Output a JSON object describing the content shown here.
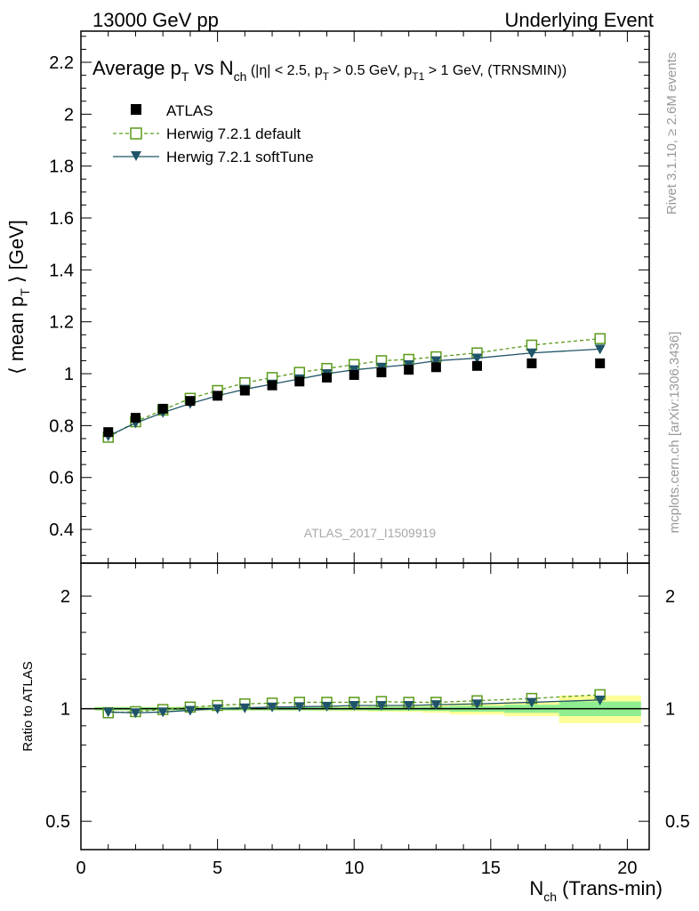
{
  "header": {
    "energy_label": "13000 GeV pp",
    "process_label": "Underlying Event"
  },
  "side_labels": {
    "rivet": "Rivet 3.1.10, ≥ 2.6M events",
    "mcplots": "mcplots.cern.ch [arXiv:1306.3436]"
  },
  "watermark": "ATLAS_2017_I1509919",
  "colors": {
    "atlas": "#000000",
    "default": "#5a9a1a",
    "softtune": "#1f5468",
    "band_inner": "#90ee90",
    "band_outer": "#ffff99"
  },
  "chart_data": [
    {
      "type": "line",
      "panel": "main",
      "title_parts": {
        "a": "Average p",
        "a_sub": "T",
        "b": " vs N",
        "b_sub": "ch",
        "c": " (|η| < 2.5, p",
        "c_sub": "T",
        "d": " > 0.5 GeV, p",
        "d_sub": "T1",
        "e": " > 1 GeV, (TRNSMIN))"
      },
      "ylabel_parts": {
        "a": "⟨ mean p",
        "a_sub": "T",
        "b": " ⟩ [GeV]"
      },
      "xlim": [
        0,
        20.8
      ],
      "ylim": [
        0.27,
        2.32
      ],
      "yticks": [
        0.4,
        0.6,
        0.8,
        1,
        1.2,
        1.4,
        1.6,
        1.8,
        2,
        2.2
      ],
      "ytick_labels": [
        "0.4",
        "0.6",
        "0.8",
        "1",
        "1.2",
        "1.4",
        "1.6",
        "1.8",
        "2",
        "2.2"
      ],
      "legend_position": "top-left",
      "series": [
        {
          "name": "ATLAS",
          "style": "data",
          "x": [
            1,
            2,
            3,
            4,
            5,
            6,
            7,
            8,
            9,
            10,
            11,
            12,
            13,
            14.5,
            16.5,
            19
          ],
          "values": [
            0.775,
            0.83,
            0.865,
            0.895,
            0.915,
            0.935,
            0.955,
            0.97,
            0.985,
            0.995,
            1.005,
            1.015,
            1.025,
            1.03,
            1.04,
            1.04
          ]
        },
        {
          "name": "Herwig 7.2.1 default",
          "style": "default",
          "x": [
            1,
            2,
            3,
            4,
            5,
            6,
            7,
            8,
            9,
            10,
            11,
            12,
            13,
            14.5,
            16.5,
            19
          ],
          "values": [
            0.755,
            0.815,
            0.86,
            0.905,
            0.935,
            0.965,
            0.985,
            1.005,
            1.02,
            1.035,
            1.05,
            1.055,
            1.065,
            1.08,
            1.11,
            1.135
          ]
        },
        {
          "name": "Herwig 7.2.1 softTune",
          "style": "softtune",
          "x": [
            1,
            2,
            3,
            4,
            5,
            6,
            7,
            8,
            9,
            10,
            11,
            12,
            13,
            14.5,
            16.5,
            19
          ],
          "values": [
            0.76,
            0.81,
            0.85,
            0.885,
            0.915,
            0.94,
            0.96,
            0.98,
            1.0,
            1.015,
            1.025,
            1.035,
            1.05,
            1.06,
            1.08,
            1.095
          ]
        }
      ]
    },
    {
      "type": "line",
      "panel": "ratio",
      "ylabel": "Ratio to ATLAS",
      "xlabel_parts": {
        "a": "N",
        "a_sub": "ch",
        "b": " (Trans-min)"
      },
      "xlim": [
        0,
        20.8
      ],
      "ylim": [
        0.42,
        2.45
      ],
      "log_scale_y": true,
      "xticks": [
        0,
        5,
        10,
        15,
        20
      ],
      "xtick_labels": [
        "0",
        "5",
        "10",
        "15",
        "20"
      ],
      "yticks": [
        0.5,
        1,
        2
      ],
      "ytick_labels": [
        "0.5",
        "1",
        "2"
      ],
      "uncertainty_bands": {
        "x_edges": [
          0.5,
          1.5,
          2.5,
          3.5,
          4.5,
          5.5,
          6.5,
          7.5,
          8.5,
          9.5,
          10.5,
          11.5,
          12.5,
          13.5,
          15.5,
          17.5,
          20.5
        ],
        "inner": [
          0.01,
          0.01,
          0.01,
          0.01,
          0.01,
          0.01,
          0.01,
          0.01,
          0.01,
          0.01,
          0.012,
          0.012,
          0.014,
          0.018,
          0.025,
          0.045
        ],
        "outer": [
          0.012,
          0.012,
          0.012,
          0.012,
          0.012,
          0.012,
          0.012,
          0.012,
          0.014,
          0.015,
          0.018,
          0.02,
          0.025,
          0.035,
          0.045,
          0.085
        ]
      },
      "series": [
        {
          "name": "Herwig 7.2.1 default",
          "style": "default",
          "x": [
            1,
            2,
            3,
            4,
            5,
            6,
            7,
            8,
            9,
            10,
            11,
            12,
            13,
            14.5,
            16.5,
            19
          ],
          "values": [
            0.975,
            0.982,
            0.995,
            1.01,
            1.02,
            1.03,
            1.035,
            1.04,
            1.04,
            1.04,
            1.045,
            1.04,
            1.04,
            1.05,
            1.065,
            1.09
          ]
        },
        {
          "name": "Herwig 7.2.1 softTune",
          "style": "softtune",
          "x": [
            1,
            2,
            3,
            4,
            5,
            6,
            7,
            8,
            9,
            10,
            11,
            12,
            13,
            14.5,
            16.5,
            19
          ],
          "values": [
            0.98,
            0.975,
            0.98,
            0.99,
            1.0,
            1.005,
            1.01,
            1.012,
            1.015,
            1.02,
            1.02,
            1.02,
            1.025,
            1.03,
            1.04,
            1.055
          ]
        }
      ]
    }
  ]
}
